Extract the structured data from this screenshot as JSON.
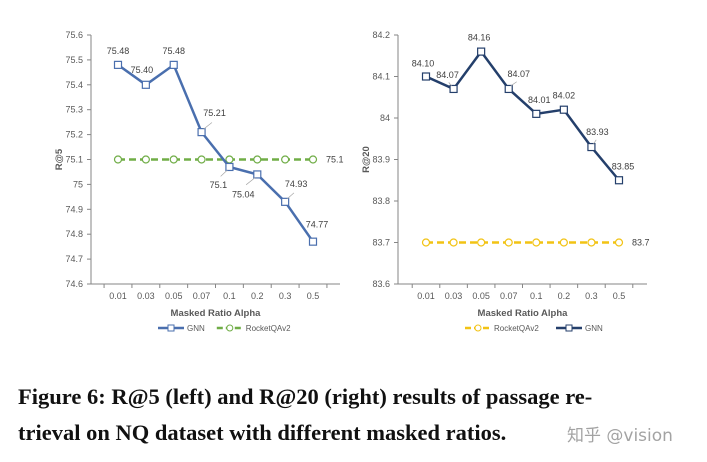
{
  "chart_data": [
    {
      "type": "line",
      "xlabel": "Masked Ratio Alpha",
      "ylabel": "R@5",
      "categories": [
        "0.01",
        "0.03",
        "0.05",
        "0.07",
        "0.1",
        "0.2",
        "0.3",
        "0.5"
      ],
      "ylim": [
        74.6,
        75.6
      ],
      "yticks": [
        "75.6",
        "75.5",
        "75.4",
        "75.3",
        "75.2",
        "75.1",
        "75",
        "74.9",
        "74.8",
        "74.7",
        "74.6"
      ],
      "grid": false,
      "legend": "bottom",
      "series": [
        {
          "name": "GNN",
          "color": "#4a6fae",
          "marker": "square",
          "dash": false,
          "values": [
            75.48,
            75.4,
            75.48,
            75.21,
            75.07,
            75.04,
            74.93,
            74.77
          ],
          "labels": [
            "75.48",
            "75.40",
            "75.48",
            "75.21",
            "75.1",
            "75.04",
            "74.93",
            "74.77"
          ]
        },
        {
          "name": "RocketQAv2",
          "color": "#70ad47",
          "marker": "circle",
          "dash": true,
          "values": [
            75.1,
            75.1,
            75.1,
            75.1,
            75.1,
            75.1,
            75.1,
            75.1
          ],
          "end_label": "75.1"
        }
      ]
    },
    {
      "type": "line",
      "xlabel": "Masked Ratio Alpha",
      "ylabel": "R@20",
      "categories": [
        "0.01",
        "0.03",
        "0.05",
        "0.07",
        "0.1",
        "0.2",
        "0.3",
        "0.5"
      ],
      "ylim": [
        83.6,
        84.2
      ],
      "yticks": [
        "84.2",
        "84.1",
        "84",
        "83.9",
        "83.8",
        "83.7",
        "83.6"
      ],
      "grid": false,
      "legend": "bottom",
      "series": [
        {
          "name": "RocketQAv2",
          "color": "#f2c314",
          "marker": "circle",
          "dash": true,
          "values": [
            83.7,
            83.7,
            83.7,
            83.7,
            83.7,
            83.7,
            83.7,
            83.7
          ],
          "end_label": "83.7"
        },
        {
          "name": "GNN",
          "color": "#243f6b",
          "marker": "square",
          "dash": false,
          "values": [
            84.1,
            84.07,
            84.16,
            84.07,
            84.01,
            84.02,
            83.93,
            83.85
          ],
          "labels": [
            "84.10",
            "84.07",
            "84.16",
            "84.07",
            "84.01",
            "84.02",
            "83.93",
            "83.85"
          ]
        }
      ]
    }
  ],
  "caption": {
    "line1": "Figure 6: R@5 (left) and R@20 (right) results of passage re-",
    "line2": "trieval on NQ dataset with different masked ratios."
  },
  "watermark": "知乎 @vision"
}
